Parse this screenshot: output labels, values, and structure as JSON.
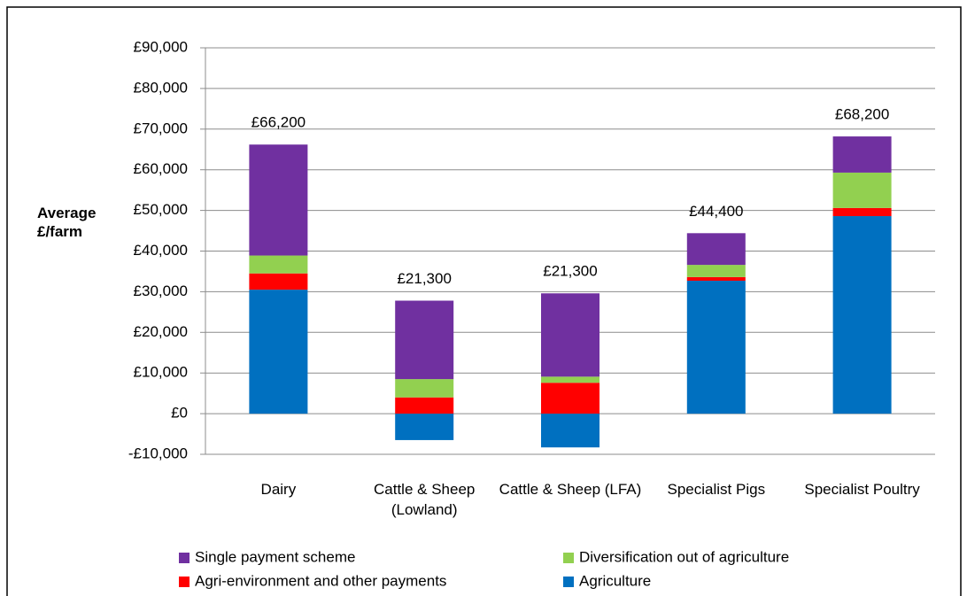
{
  "chart_data": {
    "type": "stacked_bar",
    "ylabel": "Average £/farm",
    "categories": [
      "Dairy",
      "Cattle & Sheep (Lowland)",
      "Cattle & Sheep (LFA)",
      "Specialist Pigs",
      "Specialist Poultry"
    ],
    "series": [
      {
        "name": "Agriculture",
        "color": "#0070c0",
        "values": [
          30500,
          -6500,
          -8300,
          32700,
          48600
        ]
      },
      {
        "name": "Agri-environment and other payments",
        "color": "#ff0000",
        "values": [
          4000,
          4000,
          7600,
          900,
          2000
        ]
      },
      {
        "name": "Diversification out of agriculture",
        "color": "#92d050",
        "values": [
          4400,
          4500,
          1500,
          3000,
          8700
        ]
      },
      {
        "name": "Single payment scheme",
        "color": "#7030a0",
        "values": [
          27300,
          19300,
          20500,
          7800,
          8900
        ]
      }
    ],
    "totals": [
      66200,
      21300,
      21300,
      44400,
      68200
    ],
    "total_labels": [
      "£66,200",
      "£21,300",
      "£21,300",
      "£44,400",
      "£68,200"
    ],
    "ylim": [
      -10000,
      90000
    ],
    "yticks": [
      {
        "value": -10000,
        "label": "-£10,000"
      },
      {
        "value": 0,
        "label": "£0"
      },
      {
        "value": 10000,
        "label": "£10,000"
      },
      {
        "value": 20000,
        "label": "£20,000"
      },
      {
        "value": 30000,
        "label": "£30,000"
      },
      {
        "value": 40000,
        "label": "£40,000"
      },
      {
        "value": 50000,
        "label": "£50,000"
      },
      {
        "value": 60000,
        "label": "£60,000"
      },
      {
        "value": 70000,
        "label": "£70,000"
      },
      {
        "value": 80000,
        "label": "£80,000"
      },
      {
        "value": 90000,
        "label": "£90,000"
      }
    ],
    "grid": true
  }
}
